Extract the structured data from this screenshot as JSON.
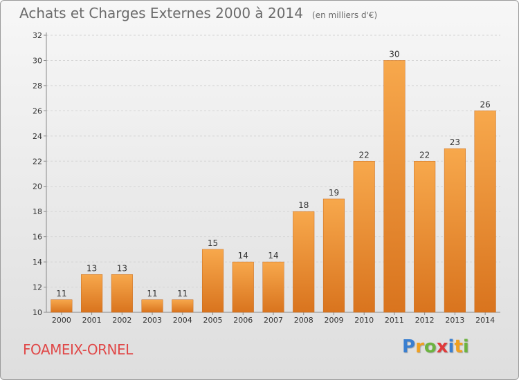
{
  "title": "Achats et Charges Externes 2000 à 2014",
  "unit": "(en milliers d'€)",
  "place": "FOAMEIX-ORNEL",
  "logo": {
    "letters": [
      "P",
      "r",
      "o",
      "x",
      "i",
      "t",
      "i"
    ],
    "colors": [
      "#3a7fd0",
      "#f0a020",
      "#6cb33f",
      "#e03a3a",
      "#3a7fd0",
      "#f0a020",
      "#6cb33f"
    ]
  },
  "colors": {
    "bar_light": "#f7a84c",
    "bar_dark": "#d9741e",
    "place": "#e04848"
  },
  "chart_data": {
    "type": "bar",
    "categories": [
      "2000",
      "2001",
      "2002",
      "2003",
      "2004",
      "2005",
      "2006",
      "2007",
      "2008",
      "2009",
      "2010",
      "2011",
      "2012",
      "2013",
      "2014"
    ],
    "values": [
      11,
      13,
      13,
      11,
      11,
      15,
      14,
      14,
      18,
      19,
      22,
      30,
      22,
      23,
      26
    ],
    "ylim": [
      10,
      32
    ],
    "yticks": [
      10,
      12,
      14,
      16,
      18,
      20,
      22,
      24,
      26,
      28,
      30,
      32
    ],
    "grid": true,
    "data_labels": true
  }
}
